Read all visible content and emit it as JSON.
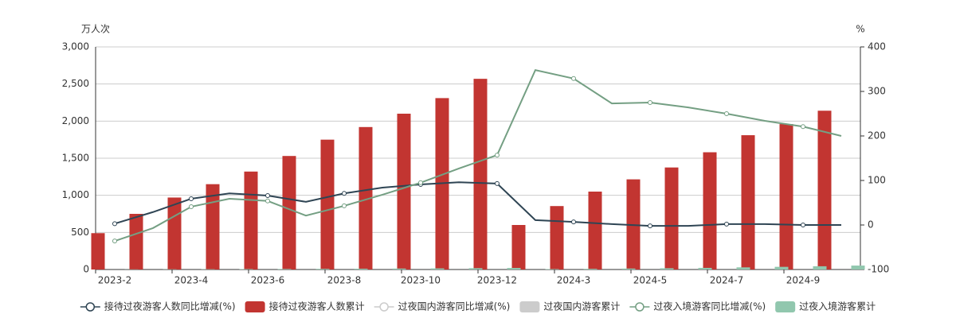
{
  "chart_data": {
    "type": "bar",
    "y_axis_label": "万人次",
    "y2_axis_label": "%",
    "categories": [
      "2023-2",
      null,
      "2023-4",
      null,
      "2023-6",
      null,
      "2023-8",
      null,
      "2023-10",
      null,
      "2023-12",
      null,
      "2024-3",
      null,
      "2024-5",
      null,
      "2024-7",
      null,
      "2024-9",
      null
    ],
    "ylim": [
      0,
      3000
    ],
    "yticks": [
      0,
      {
        "value": 500,
        "label": "500"
      },
      {
        "value": 1000,
        "label": "1,000"
      },
      {
        "value": 1500,
        "label": "1,500"
      },
      {
        "value": 2000,
        "label": "2,000"
      },
      {
        "value": 2500,
        "label": "2,500"
      },
      {
        "value": 3000,
        "label": "3,000"
      }
    ],
    "y2lim": [
      -100,
      400
    ],
    "y2ticks": [
      -100,
      0,
      100,
      200,
      300,
      400
    ],
    "grid": true,
    "legend": "bottom",
    "series": [
      {
        "name": "接待过夜游客人数同比增减(%)",
        "type": "line",
        "axis": "y2",
        "color": "#2f4554",
        "hidden": false,
        "values": [
          3,
          29,
          59,
          71,
          66,
          52,
          71,
          84,
          91,
          96,
          93,
          11,
          7,
          2,
          -2,
          -2,
          2,
          2,
          0,
          0
        ]
      },
      {
        "name": "接待过夜游客人数累计",
        "type": "bar",
        "color": "#c23531",
        "hidden": false,
        "values": [
          490,
          750,
          970,
          1150,
          1320,
          1530,
          1750,
          1920,
          2100,
          2310,
          2570,
          600,
          855,
          1050,
          1215,
          1375,
          1580,
          1810,
          1960,
          2140
        ]
      },
      {
        "name": "过夜国内游客同比增减(%)",
        "type": "line",
        "axis": "y2",
        "color": "#cccccc",
        "hidden": true,
        "values": [
          null,
          null,
          null,
          null,
          null,
          null,
          null,
          null,
          null,
          null,
          null,
          null,
          null,
          null,
          null,
          null,
          null,
          null,
          null,
          null
        ]
      },
      {
        "name": "过夜国内游客累计",
        "type": "bar",
        "color": "#cccccc",
        "hidden": true,
        "values": [
          null,
          null,
          null,
          null,
          null,
          null,
          null,
          null,
          null,
          null,
          null,
          null,
          null,
          null,
          null,
          null,
          null,
          null,
          null,
          null
        ]
      },
      {
        "name": "过夜入境游客同比增减(%)",
        "type": "line",
        "axis": "y2",
        "color": "#749f83",
        "hidden": false,
        "values": [
          -36,
          -7,
          41,
          59,
          54,
          21,
          43,
          68,
          95,
          127,
          157,
          348,
          329,
          273,
          275,
          264,
          250,
          234,
          221,
          200
        ]
      },
      {
        "name": "过夜入境游客累计",
        "type": "bar",
        "color": "#91c7ae",
        "hidden": false,
        "values": [
          2,
          3,
          4,
          6,
          7,
          9,
          11,
          13,
          15,
          18,
          21,
          6,
          9,
          13,
          17,
          22,
          29,
          36,
          44,
          53
        ]
      }
    ]
  }
}
